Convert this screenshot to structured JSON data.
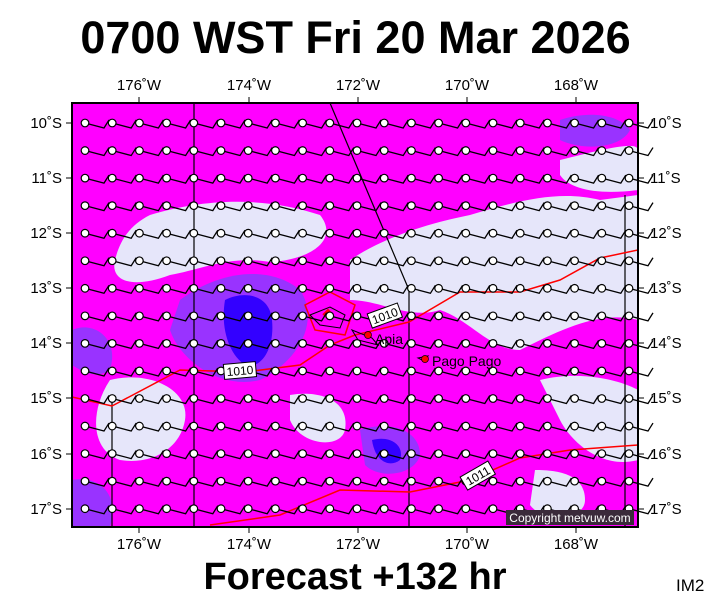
{
  "title": "0700 WST Fri 20 Mar 2026",
  "footer": "Forecast +132 hr",
  "image_code": "IM2",
  "copyright": "Copyright metvuw.com",
  "lon_ticks": [
    "176˚W",
    "174˚W",
    "172˚W",
    "170˚W",
    "168˚W"
  ],
  "lat_ticks": [
    "10˚S",
    "11˚S",
    "12˚S",
    "13˚S",
    "14˚S",
    "15˚S",
    "16˚S",
    "17˚S"
  ],
  "places": [
    {
      "name": "Apia"
    },
    {
      "name": "Pago Pago"
    }
  ],
  "isobar_labels": [
    "1010",
    "1010",
    "1011"
  ],
  "colors": {
    "base": "#ff00ff",
    "light": "#e6e6fa",
    "purple": "#9933ff",
    "blue": "#3300ff",
    "isobar": "#ff0000"
  }
}
